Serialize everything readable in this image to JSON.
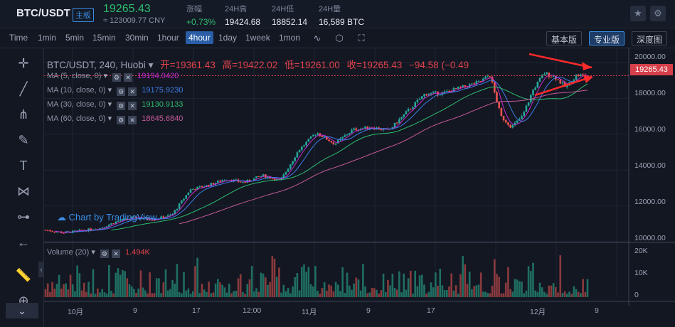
{
  "header": {
    "pair": "BTC/USDT",
    "board": "主板",
    "price": "19265.43",
    "cny": "≈ 123009.77 CNY",
    "change_label": "涨幅",
    "change_value": "+0.73%",
    "high_label": "24H高",
    "high_value": "19424.68",
    "low_label": "24H低",
    "low_value": "18852.14",
    "volume_label": "24H量",
    "volume_value": "16,589 BTC",
    "star_icon": "star-icon",
    "settings_icon": "gear-icon"
  },
  "toolbar": {
    "timeframes": [
      "Time",
      "1min",
      "5min",
      "15min",
      "30min",
      "1hour",
      "4hour",
      "1day",
      "1week",
      "1mon"
    ],
    "active_timeframe": "4hour",
    "views": [
      "基本版",
      "专业版",
      "深度图"
    ],
    "active_view": "专业版",
    "icons": [
      "indicator-icon",
      "settings-icon",
      "fullscreen-icon"
    ]
  },
  "left_tools": [
    "crosshair-icon",
    "trendline-icon",
    "pitchfork-icon",
    "brush-icon",
    "text-icon",
    "pattern-icon",
    "measure-icon",
    "back-arrow-icon",
    "ruler-icon",
    "zoom-icon"
  ],
  "chart_data": {
    "type": "candlestick",
    "symbol_line": "BTC/USDT, 240, Huobi",
    "open_label": "开=",
    "open": "19361.43",
    "high_label": "高=",
    "high": "19422.02",
    "low_label": "低=",
    "low": "19261.00",
    "close_label": "收=",
    "close": "19265.43",
    "change": "−94.58",
    "change_pct": "(−0.49",
    "last_price_badge": "19265.43",
    "ylim": [
      10000,
      20000
    ],
    "y_ticks": [
      "20000.00",
      "18000.00",
      "16000.00",
      "14000.00",
      "12000.00",
      "10000.00"
    ],
    "y_tick_values": [
      20000,
      18000,
      16000,
      14000,
      12000,
      10000
    ],
    "x_ticks": [
      "10月",
      "9",
      "17",
      "12:00",
      "11月",
      "9",
      "17",
      "12月",
      "9"
    ],
    "x_tick_values": [
      0.05,
      0.15,
      0.25,
      0.35,
      0.45,
      0.55,
      0.65,
      0.78,
      0.88
    ],
    "ma": [
      {
        "name": "MA (5, close, 0)",
        "value": "19194.0420",
        "color": "#c62ad1"
      },
      {
        "name": "MA (10, close, 0)",
        "value": "19175.9230",
        "color": "#3d7ee8"
      },
      {
        "name": "MA (30, close, 0)",
        "value": "19130.9133",
        "color": "#2ebd6e"
      },
      {
        "name": "MA (60, close, 0)",
        "value": "18645.6840",
        "color": "#c65a9a"
      }
    ],
    "price_path": [
      [
        0.0,
        10650
      ],
      [
        0.05,
        10500
      ],
      [
        0.1,
        10620
      ],
      [
        0.15,
        10750
      ],
      [
        0.2,
        11150
      ],
      [
        0.25,
        11350
      ],
      [
        0.3,
        11250
      ],
      [
        0.35,
        11500
      ],
      [
        0.4,
        12900
      ],
      [
        0.45,
        13150
      ],
      [
        0.5,
        13500
      ],
      [
        0.55,
        13300
      ],
      [
        0.6,
        13700
      ],
      [
        0.65,
        13400
      ],
      [
        0.7,
        15100
      ],
      [
        0.75,
        16100
      ],
      [
        0.8,
        15450
      ],
      [
        0.85,
        16250
      ],
      [
        0.9,
        16400
      ],
      [
        0.95,
        16200
      ],
      [
        1.0,
        17250
      ],
      [
        1.05,
        18250
      ],
      [
        1.1,
        18300
      ],
      [
        1.15,
        18600
      ],
      [
        1.2,
        18900
      ],
      [
        1.23,
        19300
      ],
      [
        1.26,
        17000
      ],
      [
        1.29,
        16400
      ],
      [
        1.32,
        17000
      ],
      [
        1.35,
        18500
      ],
      [
        1.38,
        19400
      ],
      [
        1.41,
        19200
      ],
      [
        1.44,
        18600
      ],
      [
        1.47,
        19300
      ],
      [
        1.5,
        19265
      ]
    ],
    "x_domain": [
      0,
      1.5
    ],
    "volume_label": "Volume (20)",
    "volume_value": "1.494K",
    "volume_ticks": [
      "20K",
      "10K",
      "0"
    ],
    "volume_tick_values": [
      20000,
      10000,
      0
    ],
    "volume_ylim": [
      0,
      22000
    ],
    "watermark": "Chart by TradingView"
  }
}
